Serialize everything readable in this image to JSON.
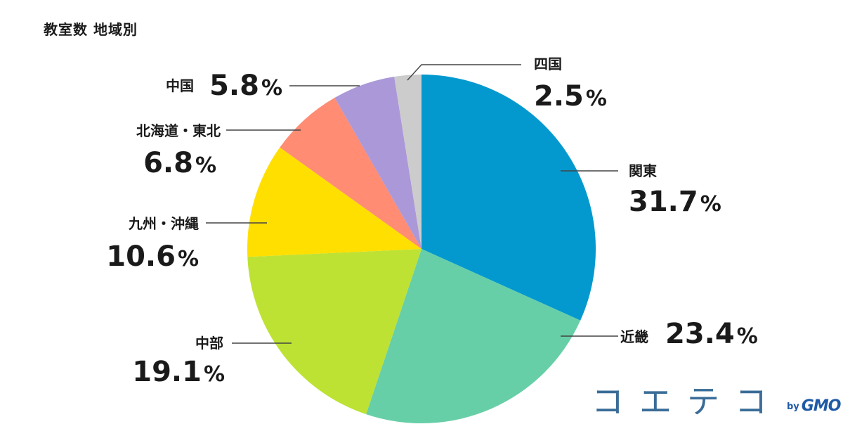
{
  "chart_data": {
    "type": "pie",
    "title": "教室数 地域別",
    "unit": "%",
    "start_angle_deg": 0,
    "direction": "clockwise",
    "slices": [
      {
        "name": "関東",
        "value": 31.7,
        "color": "#0399cf"
      },
      {
        "name": "近畿",
        "value": 23.4,
        "color": "#67cfa7"
      },
      {
        "name": "中部",
        "value": 19.1,
        "color": "#bde234"
      },
      {
        "name": "九州・沖縄",
        "value": 10.6,
        "color": "#ffdf00"
      },
      {
        "name": "北海道・東北",
        "value": 6.8,
        "color": "#ff8c73"
      },
      {
        "name": "中国",
        "value": 5.8,
        "color": "#ab98d9"
      },
      {
        "name": "四国",
        "value": 2.5,
        "color": "#cccccc"
      }
    ]
  },
  "brand": {
    "logo_text": "コエテコ",
    "by": "by",
    "company": "GMO"
  }
}
